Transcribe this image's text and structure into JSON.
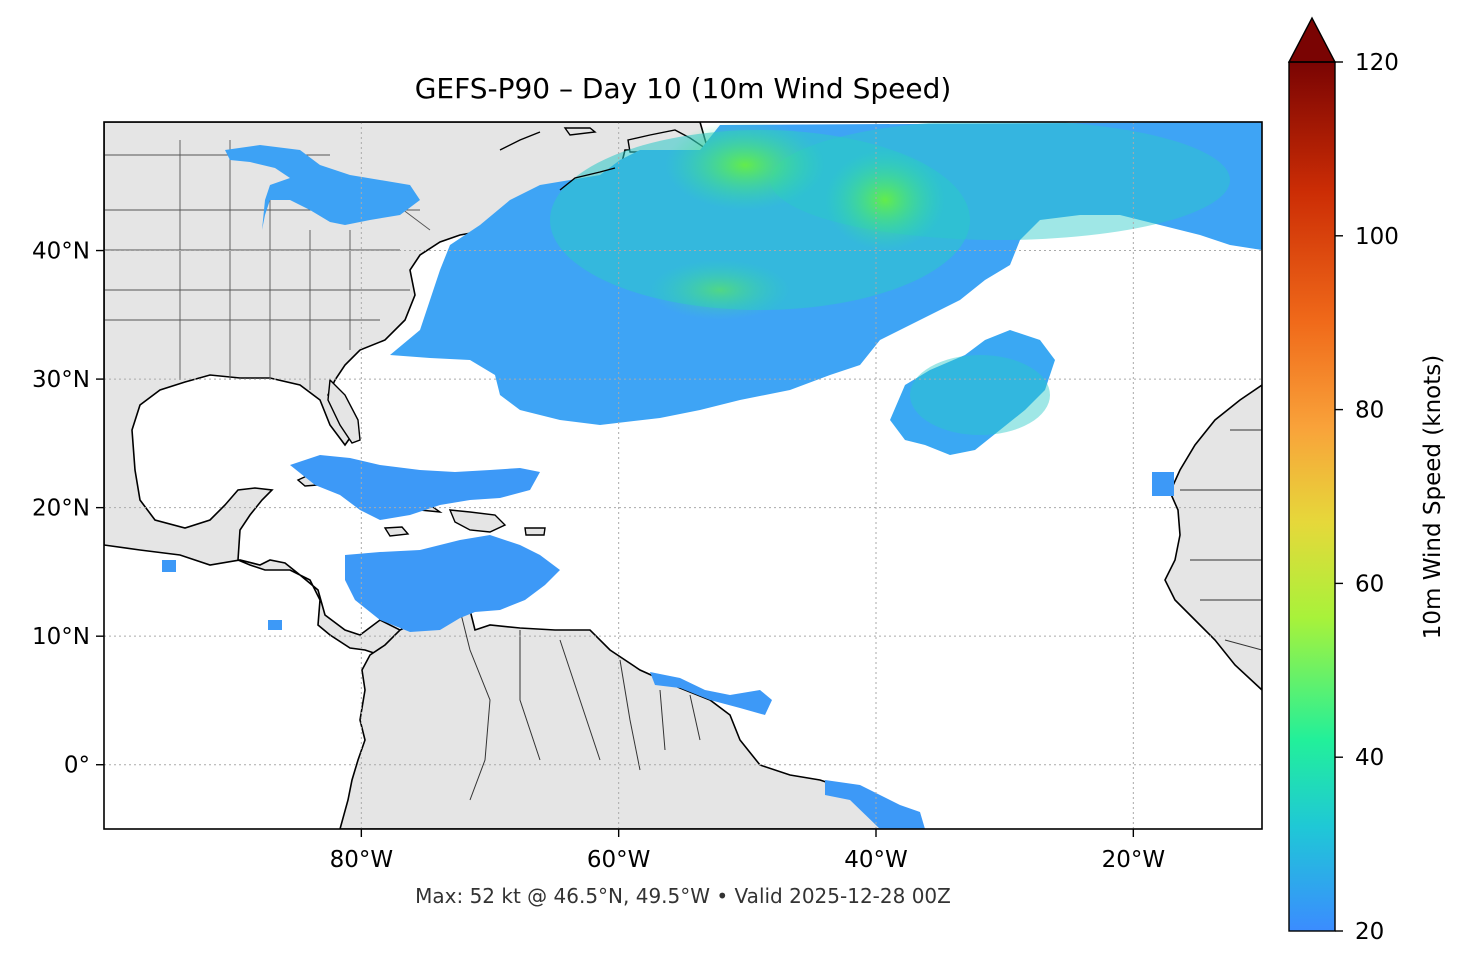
{
  "title": "GEFS-P90 – Day 10 (10m Wind Speed)",
  "footer": "Max: 52 kt @ 46.5°N, 49.5°W • Valid 2025-12-28 00Z",
  "map": {
    "lon_range": [
      -100,
      -10
    ],
    "lat_range": [
      -5,
      50
    ],
    "lon_ticks": [
      {
        "lon": -80,
        "label": "80°W"
      },
      {
        "lon": -60,
        "label": "60°W"
      },
      {
        "lon": -40,
        "label": "40°W"
      },
      {
        "lon": -20,
        "label": "20°W"
      }
    ],
    "lat_ticks": [
      {
        "lat": 40,
        "label": "40°N"
      },
      {
        "lat": 30,
        "label": "30°N"
      },
      {
        "lat": 20,
        "label": "20°N"
      },
      {
        "lat": 10,
        "label": "10°N"
      },
      {
        "lat": 0,
        "label": "0°"
      }
    ],
    "gridlines": "dotted",
    "land_color": "#e5e5e5",
    "ocean_color": "#ffffff"
  },
  "colorbar": {
    "label": "10m Wind Speed (knots)",
    "range": [
      20,
      120
    ],
    "extend": "max",
    "ticks": [
      {
        "value": 20,
        "label": "20"
      },
      {
        "value": 40,
        "label": "40"
      },
      {
        "value": 60,
        "label": "60"
      },
      {
        "value": 80,
        "label": "80"
      },
      {
        "value": 100,
        "label": "100"
      },
      {
        "value": 120,
        "label": "120"
      }
    ],
    "colors": [
      "#3b8cff",
      "#1fc8d6",
      "#22f09a",
      "#a8f23a",
      "#e6d83a",
      "#f9a23a",
      "#f06a1a",
      "#cc2d05",
      "#7a0403"
    ]
  },
  "max_wind": {
    "value_kt": 52,
    "lat": 46.5,
    "lon": -49.5
  }
}
